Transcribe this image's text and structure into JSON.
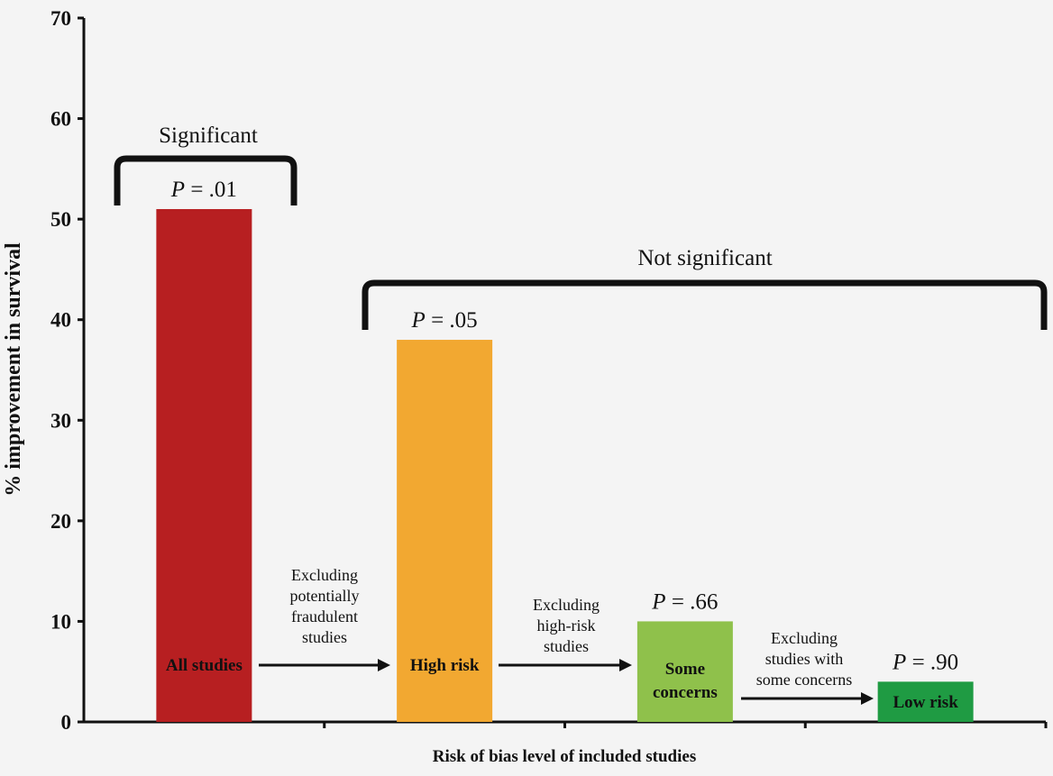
{
  "chart_data": {
    "type": "bar",
    "categories": [
      "All studies",
      "High risk",
      "Some concerns",
      "Low risk"
    ],
    "category_label_lines": [
      [
        "All studies"
      ],
      [
        "High risk"
      ],
      [
        "Some",
        "concerns"
      ],
      [
        "Low risk"
      ]
    ],
    "values": [
      51,
      38,
      10,
      4
    ],
    "colors": [
      "#b71f21",
      "#f2a831",
      "#8fc14b",
      "#1f9b43"
    ],
    "p_values": [
      "P = .01",
      "P = .05",
      "P = .66",
      "P = .90"
    ],
    "ylabel": "% improvement in survival",
    "xlabel": "Risk of bias level of included studies",
    "ylim": [
      0,
      70
    ],
    "yticks": [
      0,
      10,
      20,
      30,
      40,
      50,
      60,
      70
    ],
    "grid": false,
    "transitions": [
      [
        "Excluding",
        "potentially",
        "fraudulent",
        "studies"
      ],
      [
        "Excluding",
        "high-risk",
        "studies"
      ],
      [
        "Excluding",
        "studies with",
        "some concerns"
      ]
    ],
    "brackets": [
      {
        "label": "Significant",
        "covers": [
          "All studies"
        ]
      },
      {
        "label": "Not significant",
        "covers": [
          "High risk",
          "Some concerns",
          "Low risk"
        ]
      }
    ]
  }
}
